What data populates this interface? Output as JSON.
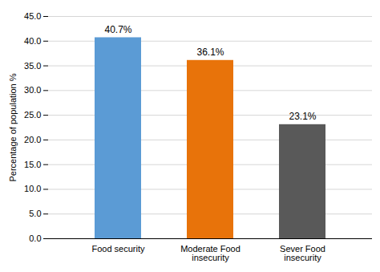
{
  "chart_data": {
    "type": "bar",
    "categories": [
      "Food security",
      "Moderate Food\ninsecurity",
      "Sever Food\ninsecurity"
    ],
    "values": [
      40.7,
      36.1,
      23.1
    ],
    "value_labels": [
      "40.7%",
      "36.1%",
      "23.1%"
    ],
    "data_labels": true,
    "colors": [
      "#5B9BD5",
      "#E8730A",
      "#595959"
    ],
    "ylabel": "Percentage of population %",
    "ylim": [
      0,
      45
    ],
    "yticks": [
      {
        "value": 0,
        "label": "0.0"
      },
      {
        "value": 5,
        "label": "5.0"
      },
      {
        "value": 10,
        "label": "10.0"
      },
      {
        "value": 15,
        "label": "15.0"
      },
      {
        "value": 20,
        "label": "20.0"
      },
      {
        "value": 25,
        "label": "25.0"
      },
      {
        "value": 30,
        "label": "30.0"
      },
      {
        "value": 35,
        "label": "35.0"
      },
      {
        "value": 40,
        "label": "40.0"
      },
      {
        "value": 45,
        "label": "45.0"
      }
    ],
    "grid": true
  }
}
